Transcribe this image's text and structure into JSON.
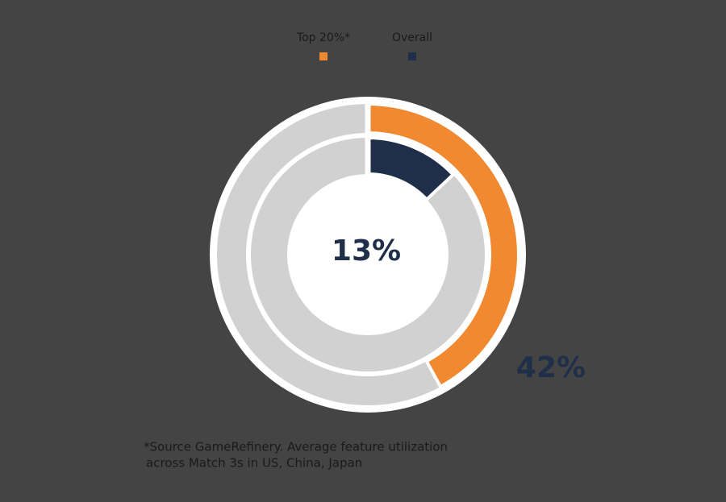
{
  "chart_data": {
    "type": "donut",
    "series": [
      {
        "name": "Top 20%*",
        "color": "#f0892f",
        "values": [
          42
        ],
        "value_labels": [
          "42%"
        ]
      },
      {
        "name": "Overall",
        "color": "#1f2f4a",
        "values": [
          13
        ],
        "value_labels": [
          "13%"
        ]
      }
    ],
    "rest_color": "#d1d1d1",
    "note": [
      "*Source GameRefinery. Average feature utilization",
      "across Match 3s in US, China, Japan"
    ]
  }
}
